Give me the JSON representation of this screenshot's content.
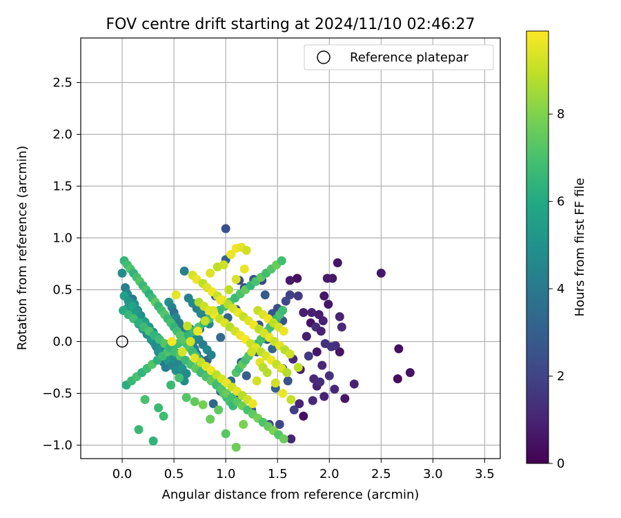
{
  "chart_data": {
    "type": "scatter",
    "title": "FOV centre drift starting at 2024/11/10 02:46:27",
    "xlabel": "Angular distance from reference (arcmin)",
    "ylabel": "Rotation from reference (arcmin)",
    "xlim": [
      -0.4,
      3.65
    ],
    "ylim": [
      -1.13,
      2.93
    ],
    "xticks": [
      "0.0",
      "0.5",
      "1.0",
      "1.5",
      "2.0",
      "2.5",
      "3.0",
      "3.5"
    ],
    "xtick_values": [
      0,
      0.5,
      1,
      1.5,
      2,
      2.5,
      3,
      3.5
    ],
    "yticks": [
      "2.5",
      "2.0",
      "1.5",
      "1.0",
      "0.5",
      "0.0",
      "−0.5",
      "−1.0"
    ],
    "ytick_values": [
      2.5,
      2.0,
      1.5,
      1.0,
      0.5,
      0.0,
      -0.5,
      -1.0
    ],
    "grid": true,
    "legend": {
      "position": "top-right",
      "entries": [
        "Reference platepar"
      ]
    },
    "reference_point": {
      "x": 0.0,
      "y": 0.0,
      "label": "Reference platepar",
      "marker": "open-circle"
    },
    "colorbar": {
      "label": "Hours from first FF file",
      "range": [
        0,
        9.9
      ],
      "ticks": [
        "0",
        "2",
        "4",
        "6",
        "8"
      ],
      "tick_values": [
        0,
        2,
        4,
        6,
        8
      ],
      "colormap": "viridis"
    },
    "series": [
      {
        "x": [
          2.5,
          2.67,
          2.78,
          2.66,
          2.24,
          2.15,
          2.1,
          2.03,
          2.08,
          1.98,
          1.95,
          1.99,
          1.9,
          1.82,
          1.87,
          1.83,
          1.75,
          1.69,
          1.62,
          1.63,
          1.66,
          1.71,
          1.95,
          2.05,
          1.88,
          2.0,
          2.12,
          1.96,
          2.06,
          1.93,
          1.75,
          1.88,
          1.94,
          2.1,
          1.85,
          1.72,
          1.8,
          1.92,
          1.65,
          1.78,
          2.02,
          1.91,
          1.84,
          1.7
        ],
        "y": [
          0.66,
          -0.07,
          -0.3,
          -0.36,
          -0.41,
          -0.55,
          -0.1,
          0.61,
          0.76,
          0.61,
          0.44,
          0.36,
          0.26,
          0.18,
          0.14,
          0.28,
          0.28,
          0.61,
          0.59,
          -0.94,
          -0.66,
          -0.6,
          -0.53,
          -0.46,
          -0.43,
          -0.33,
          0.14,
          -0.02,
          -0.04,
          -0.23,
          -0.72,
          -0.1,
          0.2,
          0.24,
          -0.36,
          -0.27,
          -0.14,
          0.1,
          -0.17,
          0.05,
          -0.05,
          -0.39,
          -0.57,
          0.44
        ],
        "hours": [
          0.6,
          0.4,
          0.5,
          0.3,
          0.9,
          0.6,
          0.5,
          0.6,
          0.5,
          0.7,
          0.6,
          0.6,
          0.8,
          0.5,
          1.3,
          0.9,
          0.8,
          0.4,
          0.7,
          1.0,
          1.8,
          1.0,
          0.9,
          1.1,
          1.0,
          1.4,
          1.2,
          1.4,
          1.3,
          1.1,
          0.4,
          0.6,
          0.9,
          1.0,
          1.2,
          0.7,
          1.6,
          0.9,
          1.2,
          0.8,
          1.5,
          1.3,
          1.1,
          1.7
        ]
      },
      {
        "x": [
          1.0,
          1.0,
          1.13,
          1.27,
          1.35,
          1.12,
          0.88,
          0.95,
          1.05,
          1.15,
          1.25,
          1.42,
          1.48,
          1.55,
          1.62,
          1.45,
          1.58,
          1.52,
          1.4,
          1.3,
          1.2,
          1.1,
          0.95,
          0.82,
          0.75,
          0.9,
          1.02,
          1.18,
          1.32,
          1.45,
          1.6,
          1.5,
          1.38,
          1.55
        ],
        "y": [
          1.09,
          0.79,
          0.59,
          0.6,
          0.59,
          -0.54,
          -0.6,
          -0.48,
          -0.38,
          -0.2,
          -0.66,
          -0.8,
          -0.45,
          -0.26,
          0.45,
          0.27,
          0.39,
          -0.8,
          0.02,
          -0.1,
          -0.33,
          0.31,
          0.04,
          -0.18,
          0.12,
          0.44,
          0.23,
          0.52,
          0.16,
          -0.07,
          -0.38,
          0.32,
          0.45,
          0.2
        ],
        "hours": [
          2.4,
          3.1,
          2.2,
          2.6,
          2.0,
          2.3,
          3.3,
          2.8,
          3.5,
          2.9,
          2.4,
          2.1,
          3.0,
          2.7,
          1.9,
          2.6,
          2.2,
          2.1,
          3.2,
          2.5,
          3.0,
          2.8,
          3.4,
          3.1,
          3.6,
          2.9,
          3.2,
          2.4,
          2.7,
          3.3,
          2.5,
          2.3,
          2.8,
          2.6
        ]
      },
      {
        "x": [
          0.0,
          0.03,
          0.05,
          0.1,
          0.12,
          0.15,
          0.18,
          0.2,
          0.22,
          0.25,
          0.28,
          0.3,
          0.33,
          0.35,
          0.38,
          0.4,
          0.42,
          0.45,
          0.48,
          0.5,
          0.52,
          0.55,
          0.58,
          0.6,
          0.62,
          0.65,
          0.68,
          0.7,
          0.72,
          0.75,
          0.05,
          0.08,
          0.12,
          0.16,
          0.2,
          0.24,
          0.28,
          0.32,
          0.36,
          0.4,
          0.44,
          0.48,
          0.52,
          0.56,
          0.6,
          0.64,
          0.68,
          0.72,
          0.76,
          0.8,
          0.84,
          0.02,
          0.06,
          0.1,
          0.14,
          0.18,
          0.22,
          0.26,
          0.3,
          0.34,
          0.38,
          0.42,
          0.46,
          0.5,
          0.54,
          0.58,
          0.62,
          0.66,
          0.7,
          0.74,
          0.78,
          0.82,
          0.86
        ],
        "y": [
          0.66,
          0.52,
          0.46,
          0.41,
          0.36,
          0.3,
          0.25,
          0.2,
          0.15,
          0.1,
          0.05,
          0.0,
          -0.05,
          -0.1,
          -0.15,
          -0.2,
          -0.25,
          0.38,
          0.33,
          0.28,
          0.23,
          0.18,
          0.13,
          0.68,
          0.08,
          0.03,
          -0.02,
          -0.07,
          -0.12,
          -0.17,
          0.32,
          0.27,
          0.22,
          0.17,
          0.12,
          0.07,
          0.02,
          -0.03,
          -0.08,
          -0.13,
          -0.18,
          -0.23,
          -0.28,
          -0.33,
          -0.38,
          0.42,
          0.37,
          0.32,
          0.27,
          0.22,
          0.17,
          0.44,
          0.39,
          0.34,
          0.29,
          0.24,
          0.19,
          0.14,
          0.09,
          0.04,
          -0.01,
          -0.06,
          -0.11,
          -0.16,
          -0.21,
          -0.26,
          -0.31,
          0.12,
          0.07,
          0.02,
          -0.03,
          -0.08,
          -0.13
        ],
        "hours": [
          4.8,
          4.2,
          4.5,
          4.1,
          5.0,
          4.6,
          3.9,
          4.4,
          5.2,
          4.7,
          4.3,
          5.1,
          4.0,
          4.8,
          4.5,
          3.8,
          4.2,
          4.9,
          4.4,
          3.7,
          4.6,
          4.1,
          3.9,
          4.3,
          4.7,
          3.6,
          4.0,
          4.4,
          3.8,
          4.2,
          5.3,
          4.9,
          5.5,
          5.0,
          5.4,
          4.8,
          5.2,
          4.7,
          5.1,
          4.6,
          5.3,
          4.5,
          4.9,
          4.4,
          4.8,
          4.3,
          4.7,
          4.2,
          4.6,
          4.1,
          4.5,
          5.6,
          5.2,
          5.8,
          5.4,
          5.0,
          5.6,
          5.2,
          4.8,
          5.5,
          5.1,
          4.7,
          5.3,
          4.9,
          4.5,
          5.1,
          4.7,
          4.3,
          4.9,
          4.5,
          4.1,
          4.7,
          4.3
        ]
      },
      {
        "x": [
          0.02,
          0.05,
          0.08,
          0.11,
          0.14,
          0.17,
          0.2,
          0.23,
          0.26,
          0.29,
          0.32,
          0.35,
          0.38,
          0.41,
          0.44,
          0.47,
          0.5,
          0.53,
          0.56,
          0.59,
          0.62,
          0.65,
          0.68,
          0.71,
          0.74,
          0.77,
          0.8,
          0.83,
          0.86,
          0.89,
          0.92,
          0.95,
          0.98,
          1.01,
          1.04,
          1.07,
          1.1,
          1.13,
          1.16,
          1.19,
          1.22,
          1.25,
          1.28,
          1.31,
          1.34,
          1.37,
          1.4,
          1.43,
          1.46,
          1.49,
          1.52,
          1.55,
          0.04,
          0.09,
          0.14,
          0.19,
          0.24,
          0.29,
          0.34,
          0.39,
          0.44,
          0.49,
          0.54,
          0.59,
          0.64,
          0.69,
          0.74,
          0.79,
          0.84,
          0.89,
          0.94,
          0.99,
          1.04,
          1.09,
          1.14,
          1.19,
          1.24,
          1.29,
          1.34,
          1.39,
          1.44,
          1.49,
          1.54,
          0.01,
          0.06,
          0.11,
          0.16,
          0.21,
          0.26,
          0.31,
          0.36,
          0.41,
          0.46,
          0.51,
          0.56,
          0.61,
          0.66,
          0.71,
          0.76,
          0.81,
          0.86,
          0.91,
          0.96,
          1.01,
          1.06,
          1.11,
          1.16,
          1.21,
          1.26,
          1.31,
          1.36,
          1.41,
          1.46,
          1.51,
          1.56,
          0.16,
          0.3,
          0.22,
          0.4,
          0.35,
          0.62,
          0.7,
          0.78,
          0.85,
          0.93,
          1.0,
          1.1,
          1.17,
          0.55,
          0.47
        ],
        "y": [
          0.78,
          0.74,
          0.7,
          0.66,
          0.62,
          0.58,
          0.54,
          0.5,
          0.46,
          0.42,
          0.38,
          0.34,
          0.3,
          0.26,
          0.22,
          0.18,
          0.14,
          0.1,
          0.06,
          0.02,
          -0.02,
          -0.06,
          -0.1,
          -0.14,
          -0.18,
          -0.22,
          -0.26,
          -0.3,
          -0.34,
          -0.38,
          -0.42,
          -0.46,
          -0.5,
          -0.54,
          -0.58,
          -0.62,
          -0.3,
          -0.26,
          -0.22,
          -0.18,
          -0.14,
          -0.1,
          -0.06,
          -0.02,
          0.02,
          0.06,
          0.1,
          0.14,
          0.18,
          0.22,
          0.26,
          0.3,
          -0.42,
          -0.38,
          -0.34,
          -0.3,
          -0.26,
          -0.22,
          -0.18,
          -0.14,
          -0.1,
          -0.06,
          -0.02,
          0.02,
          0.06,
          0.1,
          0.14,
          0.18,
          0.22,
          0.26,
          0.3,
          0.34,
          0.38,
          0.42,
          0.46,
          0.5,
          0.54,
          0.58,
          0.62,
          0.66,
          0.7,
          0.74,
          0.78,
          0.3,
          0.26,
          0.22,
          0.18,
          0.14,
          0.1,
          0.06,
          0.02,
          -0.02,
          -0.06,
          -0.1,
          -0.14,
          -0.18,
          -0.22,
          -0.26,
          -0.3,
          -0.34,
          -0.38,
          -0.42,
          -0.46,
          -0.5,
          -0.54,
          -0.58,
          -0.62,
          -0.66,
          -0.7,
          -0.74,
          -0.78,
          -0.82,
          -0.86,
          -0.9,
          -0.94,
          -0.85,
          -0.96,
          -0.56,
          -0.72,
          -0.64,
          -0.54,
          -0.58,
          -0.61,
          -0.75,
          -0.66,
          -0.89,
          -1.02,
          -0.8,
          -0.35,
          -0.42
        ],
        "hours": [
          6.5,
          6.8,
          7.1,
          6.4,
          6.9,
          7.2,
          6.6,
          7.0,
          6.3,
          6.7,
          7.4,
          6.5,
          6.9,
          7.2,
          6.6,
          7.0,
          6.4,
          6.8,
          7.3,
          6.5,
          6.9,
          7.1,
          6.7,
          7.0,
          6.4,
          7.2,
          6.8,
          6.6,
          7.4,
          6.9,
          7.1,
          6.5,
          7.3,
          6.7,
          7.0,
          6.6,
          7.2,
          6.8,
          7.5,
          6.9,
          7.1,
          6.7,
          7.3,
          6.8,
          7.0,
          6.6,
          7.4,
          6.9,
          7.2,
          6.5,
          7.0,
          6.8,
          6.2,
          6.6,
          7.0,
          6.4,
          6.8,
          7.2,
          6.3,
          6.7,
          7.1,
          6.5,
          6.9,
          7.3,
          6.4,
          6.8,
          7.2,
          6.6,
          7.0,
          7.4,
          6.5,
          6.9,
          7.3,
          6.7,
          7.1,
          7.5,
          6.6,
          7.0,
          7.4,
          6.8,
          7.2,
          7.6,
          6.9,
          6.1,
          6.5,
          6.9,
          6.3,
          6.7,
          7.1,
          6.4,
          6.8,
          7.2,
          6.5,
          6.9,
          7.3,
          6.6,
          7.0,
          7.4,
          6.7,
          7.1,
          7.5,
          6.8,
          7.2,
          7.6,
          6.9,
          7.3,
          7.7,
          7.0,
          7.4,
          7.8,
          7.1,
          7.5,
          7.9,
          7.2,
          7.6,
          6.6,
          6.4,
          7.0,
          6.8,
          6.7,
          7.2,
          7.5,
          7.8,
          7.6,
          7.4,
          7.3,
          7.7,
          7.9,
          6.9,
          6.7
        ]
      },
      {
        "x": [
          0.68,
          0.72,
          0.78,
          0.82,
          0.87,
          0.92,
          0.97,
          1.02,
          1.07,
          1.12,
          1.17,
          1.22,
          1.27,
          1.32,
          1.37,
          1.42,
          1.47,
          1.52,
          1.57,
          1.62,
          0.7,
          0.76,
          0.81,
          0.86,
          0.91,
          0.96,
          1.01,
          1.06,
          1.11,
          1.16,
          1.21,
          1.26,
          1.31,
          1.36,
          1.41,
          1.46,
          1.51,
          1.56,
          0.74,
          0.79,
          0.84,
          0.89,
          0.94,
          0.99,
          1.04,
          1.09,
          1.14,
          1.19,
          1.24,
          1.29,
          1.34,
          1.39,
          1.44,
          1.49,
          1.54,
          1.59,
          0.66,
          0.73,
          0.8,
          0.88,
          0.95,
          1.03,
          1.1,
          1.18,
          1.25,
          1.33,
          1.4,
          1.48,
          1.55,
          1.63,
          1.7,
          1.1,
          1.15,
          1.2,
          0.85,
          0.92,
          0.98,
          1.05,
          0.52,
          0.48,
          0.58,
          0.63,
          1.3,
          1.36
        ],
        "y": [
          0.64,
          0.6,
          0.56,
          0.52,
          0.48,
          0.44,
          0.4,
          0.36,
          0.32,
          0.28,
          0.24,
          0.2,
          0.16,
          0.12,
          0.08,
          0.04,
          0.0,
          -0.04,
          -0.08,
          -0.12,
          -0.16,
          -0.2,
          -0.24,
          -0.28,
          -0.32,
          -0.36,
          -0.4,
          -0.44,
          -0.48,
          -0.52,
          -0.56,
          -0.6,
          0.3,
          0.26,
          0.22,
          0.18,
          0.14,
          0.1,
          0.38,
          0.34,
          0.3,
          0.26,
          0.22,
          0.18,
          0.14,
          0.1,
          0.06,
          0.02,
          -0.02,
          -0.06,
          -0.1,
          -0.14,
          -0.18,
          -0.22,
          -0.26,
          -0.3,
          0.0,
          0.1,
          0.2,
          0.3,
          0.4,
          0.5,
          0.6,
          0.7,
          -0.1,
          -0.2,
          -0.3,
          -0.4,
          -0.5,
          -0.56,
          -0.25,
          0.9,
          0.91,
          0.88,
          0.66,
          0.72,
          0.74,
          0.84,
          0.45,
          0.0,
          -0.1,
          0.15,
          -0.38,
          -0.25
        ],
        "hours": [
          9.3,
          9.6,
          8.9,
          9.4,
          9.7,
          9.1,
          9.5,
          8.8,
          9.2,
          9.6,
          9.0,
          9.4,
          9.7,
          8.9,
          9.3,
          9.6,
          9.1,
          9.5,
          8.8,
          9.2,
          9.5,
          9.0,
          9.4,
          9.7,
          8.9,
          9.3,
          9.6,
          9.1,
          9.5,
          8.8,
          9.2,
          9.6,
          9.0,
          9.4,
          9.7,
          8.9,
          9.3,
          9.6,
          8.7,
          9.1,
          9.5,
          9.8,
          9.0,
          9.4,
          8.8,
          9.2,
          9.6,
          9.9,
          9.1,
          9.5,
          8.9,
          9.3,
          9.7,
          9.0,
          9.4,
          8.8,
          9.3,
          9.6,
          9.0,
          9.4,
          9.7,
          8.9,
          9.3,
          9.6,
          9.1,
          9.5,
          8.8,
          9.2,
          9.6,
          9.0,
          8.9,
          9.7,
          9.5,
          9.2,
          9.4,
          8.9,
          9.1,
          9.6,
          9.5,
          9.8,
          9.3,
          9.0,
          9.2,
          8.8
        ]
      }
    ]
  }
}
